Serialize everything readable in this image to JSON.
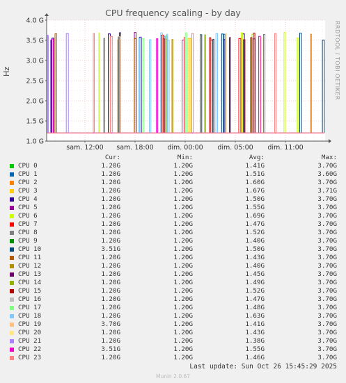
{
  "title": "CPU frequency scaling - by day",
  "side_label": "RRDTOOL / TOBI OETIKER",
  "legend_headers": {
    "cur": "Cur:",
    "min": "Min:",
    "avg": "Avg:",
    "max": "Max:"
  },
  "last_update": "Last update: Sun Oct 26 15:45:29 2025",
  "footer": "Munin 2.0.67",
  "chart_data": {
    "type": "line",
    "title": "CPU frequency scaling - by day",
    "ylabel": "Hz",
    "ylim": [
      1.0,
      4.0
    ],
    "y_ticks": [
      "1.0 G",
      "1.5 G",
      "2.0 G",
      "2.5 G",
      "3.0 G",
      "3.5 G",
      "4.0 G"
    ],
    "x_ticks": [
      "sam. 12:00",
      "sam. 18:00",
      "dim. 00:00",
      "dim. 05:00",
      "dim. 11:00"
    ],
    "grid": true,
    "series": [
      {
        "name": "CPU 0",
        "color": "#00cc00",
        "cur": "1.20G",
        "min": "1.20G",
        "avg": "1.41G",
        "max": "3.70G"
      },
      {
        "name": "CPU 1",
        "color": "#0066b3",
        "cur": "1.20G",
        "min": "1.20G",
        "avg": "1.51G",
        "max": "3.60G"
      },
      {
        "name": "CPU 2",
        "color": "#ff8000",
        "cur": "1.20G",
        "min": "1.20G",
        "avg": "1.60G",
        "max": "3.70G"
      },
      {
        "name": "CPU 3",
        "color": "#ffcc00",
        "cur": "1.20G",
        "min": "1.20G",
        "avg": "1.67G",
        "max": "3.71G"
      },
      {
        "name": "CPU 4",
        "color": "#330099",
        "cur": "1.20G",
        "min": "1.20G",
        "avg": "1.50G",
        "max": "3.70G"
      },
      {
        "name": "CPU 5",
        "color": "#990099",
        "cur": "1.20G",
        "min": "1.20G",
        "avg": "1.55G",
        "max": "3.70G"
      },
      {
        "name": "CPU 6",
        "color": "#ccff00",
        "cur": "1.20G",
        "min": "1.20G",
        "avg": "1.69G",
        "max": "3.70G"
      },
      {
        "name": "CPU 7",
        "color": "#ff0000",
        "cur": "1.20G",
        "min": "1.20G",
        "avg": "1.47G",
        "max": "3.70G"
      },
      {
        "name": "CPU 8",
        "color": "#808080",
        "cur": "1.20G",
        "min": "1.20G",
        "avg": "1.52G",
        "max": "3.70G"
      },
      {
        "name": "CPU 9",
        "color": "#008f00",
        "cur": "1.20G",
        "min": "1.20G",
        "avg": "1.40G",
        "max": "3.70G"
      },
      {
        "name": "CPU 10",
        "color": "#00487d",
        "cur": "3.51G",
        "min": "1.20G",
        "avg": "1.50G",
        "max": "3.70G"
      },
      {
        "name": "CPU 11",
        "color": "#b35a00",
        "cur": "1.20G",
        "min": "1.20G",
        "avg": "1.43G",
        "max": "3.70G"
      },
      {
        "name": "CPU 12",
        "color": "#b38f00",
        "cur": "1.20G",
        "min": "1.20G",
        "avg": "1.40G",
        "max": "3.70G"
      },
      {
        "name": "CPU 13",
        "color": "#6b006b",
        "cur": "1.20G",
        "min": "1.20G",
        "avg": "1.45G",
        "max": "3.70G"
      },
      {
        "name": "CPU 14",
        "color": "#8fb300",
        "cur": "1.20G",
        "min": "1.20G",
        "avg": "1.49G",
        "max": "3.70G"
      },
      {
        "name": "CPU 15",
        "color": "#b30000",
        "cur": "1.20G",
        "min": "1.20G",
        "avg": "1.52G",
        "max": "3.70G"
      },
      {
        "name": "CPU 16",
        "color": "#bebebe",
        "cur": "1.20G",
        "min": "1.20G",
        "avg": "1.47G",
        "max": "3.70G"
      },
      {
        "name": "CPU 17",
        "color": "#80ff80",
        "cur": "1.20G",
        "min": "1.20G",
        "avg": "1.48G",
        "max": "3.70G"
      },
      {
        "name": "CPU 18",
        "color": "#80c9ff",
        "cur": "1.20G",
        "min": "1.20G",
        "avg": "1.63G",
        "max": "3.70G"
      },
      {
        "name": "CPU 19",
        "color": "#ffc080",
        "cur": "3.70G",
        "min": "1.20G",
        "avg": "1.41G",
        "max": "3.70G"
      },
      {
        "name": "CPU 20",
        "color": "#ffe680",
        "cur": "1.20G",
        "min": "1.20G",
        "avg": "1.43G",
        "max": "3.70G"
      },
      {
        "name": "CPU 21",
        "color": "#aa80ff",
        "cur": "1.20G",
        "min": "1.20G",
        "avg": "1.38G",
        "max": "3.70G"
      },
      {
        "name": "CPU 22",
        "color": "#ee00cc",
        "cur": "3.51G",
        "min": "1.20G",
        "avg": "1.55G",
        "max": "3.70G"
      },
      {
        "name": "CPU 23",
        "color": "#ff8080",
        "cur": "1.20G",
        "min": "1.20G",
        "avg": "1.46G",
        "max": "3.70G"
      }
    ]
  }
}
